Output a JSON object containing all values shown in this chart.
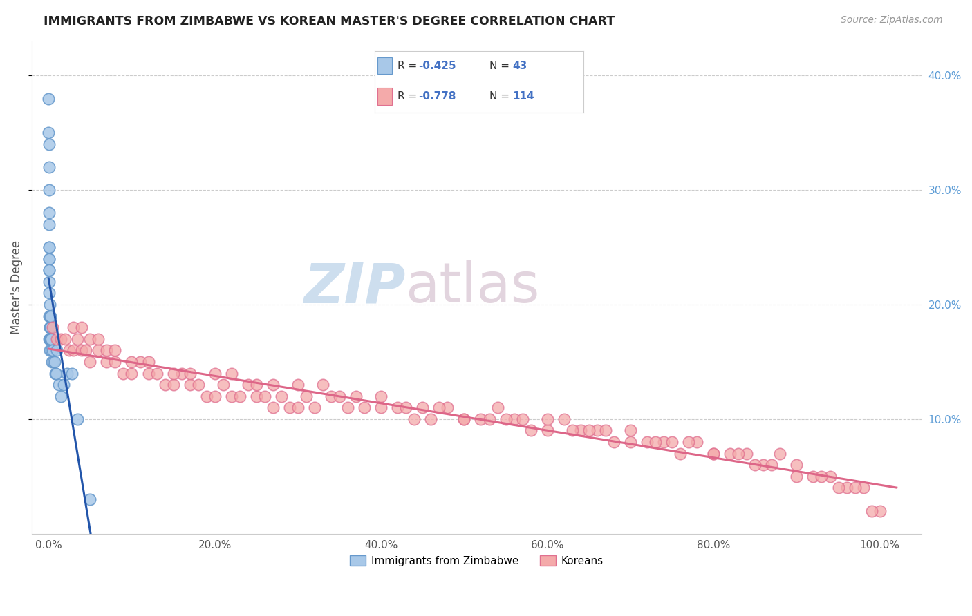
{
  "title": "IMMIGRANTS FROM ZIMBABWE VS KOREAN MASTER'S DEGREE CORRELATION CHART",
  "source": "Source: ZipAtlas.com",
  "ylabel_label": "Master's Degree",
  "x_tick_labels": [
    "0.0%",
    "20.0%",
    "40.0%",
    "60.0%",
    "80.0%",
    "100.0%"
  ],
  "x_tick_vals": [
    0,
    20,
    40,
    60,
    80,
    100
  ],
  "y_right_tick_labels": [
    "10.0%",
    "20.0%",
    "30.0%",
    "40.0%"
  ],
  "y_tick_vals": [
    10,
    20,
    30,
    40
  ],
  "xlim": [
    -2,
    105
  ],
  "ylim": [
    0,
    43
  ],
  "color_blue": "#A8C8E8",
  "color_blue_edge": "#6699CC",
  "color_pink": "#F4AAAA",
  "color_pink_edge": "#E07090",
  "color_blue_line": "#2255AA",
  "color_pink_line": "#DD6688",
  "background_color": "#FFFFFF",
  "grid_color": "#CCCCCC",
  "watermark_zip_color": "#B8D0E8",
  "watermark_atlas_color": "#D0B8C8",
  "title_color": "#222222",
  "source_color": "#999999",
  "right_tick_color": "#5B9BD5",
  "stats_r_color": "#333333",
  "stats_val_color": "#4472C4",
  "legend_label1": "Immigrants from Zimbabwe",
  "legend_label2": "Koreans",
  "zim_x": [
    0.02,
    0.02,
    0.03,
    0.03,
    0.04,
    0.04,
    0.05,
    0.05,
    0.06,
    0.06,
    0.07,
    0.08,
    0.08,
    0.09,
    0.09,
    0.1,
    0.1,
    0.11,
    0.12,
    0.13,
    0.14,
    0.15,
    0.17,
    0.18,
    0.2,
    0.22,
    0.25,
    0.3,
    0.35,
    0.4,
    0.5,
    0.6,
    0.7,
    0.8,
    0.9,
    1.0,
    1.2,
    1.5,
    1.8,
    2.2,
    2.8,
    3.5,
    5.0
  ],
  "zim_y": [
    38,
    35,
    34,
    32,
    30,
    28,
    27,
    25,
    24,
    23,
    25,
    24,
    23,
    22,
    21,
    19,
    17,
    16,
    17,
    18,
    19,
    20,
    18,
    17,
    18,
    19,
    17,
    16,
    17,
    15,
    16,
    15,
    15,
    14,
    14,
    16,
    13,
    12,
    13,
    14,
    14,
    10,
    3
  ],
  "kor_x": [
    0.5,
    1.0,
    1.5,
    2.0,
    2.5,
    3.0,
    3.5,
    4.0,
    4.5,
    5.0,
    6.0,
    7.0,
    8.0,
    9.0,
    10.0,
    11.0,
    12.0,
    13.0,
    14.0,
    15.0,
    16.0,
    17.0,
    18.0,
    19.0,
    20.0,
    21.0,
    22.0,
    23.0,
    24.0,
    25.0,
    26.0,
    27.0,
    28.0,
    29.0,
    30.0,
    31.0,
    32.0,
    34.0,
    36.0,
    38.0,
    40.0,
    42.0,
    44.0,
    46.0,
    48.0,
    50.0,
    52.0,
    54.0,
    56.0,
    58.0,
    60.0,
    62.0,
    64.0,
    66.0,
    68.0,
    70.0,
    72.0,
    74.0,
    76.0,
    78.0,
    80.0,
    82.0,
    84.0,
    86.0,
    88.0,
    90.0,
    92.0,
    94.0,
    96.0,
    98.0,
    100.0,
    3.0,
    5.0,
    7.0,
    10.0,
    15.0,
    20.0,
    25.0,
    30.0,
    35.0,
    40.0,
    45.0,
    50.0,
    55.0,
    60.0,
    65.0,
    70.0,
    75.0,
    80.0,
    85.0,
    90.0,
    95.0,
    99.0,
    8.0,
    12.0,
    17.0,
    22.0,
    27.0,
    33.0,
    37.0,
    43.0,
    47.0,
    53.0,
    57.0,
    63.0,
    67.0,
    73.0,
    77.0,
    83.0,
    87.0,
    93.0,
    97.0,
    4.0,
    6.0
  ],
  "kor_y": [
    18,
    17,
    17,
    17,
    16,
    16,
    17,
    16,
    16,
    15,
    16,
    15,
    15,
    14,
    14,
    15,
    14,
    14,
    13,
    13,
    14,
    13,
    13,
    12,
    12,
    13,
    12,
    12,
    13,
    12,
    12,
    11,
    12,
    11,
    11,
    12,
    11,
    12,
    11,
    11,
    11,
    11,
    10,
    10,
    11,
    10,
    10,
    11,
    10,
    9,
    9,
    10,
    9,
    9,
    8,
    9,
    8,
    8,
    7,
    8,
    7,
    7,
    7,
    6,
    7,
    6,
    5,
    5,
    4,
    4,
    2,
    18,
    17,
    16,
    15,
    14,
    14,
    13,
    13,
    12,
    12,
    11,
    10,
    10,
    10,
    9,
    8,
    8,
    7,
    6,
    5,
    4,
    2,
    16,
    15,
    14,
    14,
    13,
    13,
    12,
    11,
    11,
    10,
    10,
    9,
    9,
    8,
    8,
    7,
    6,
    5,
    4,
    18,
    17
  ]
}
